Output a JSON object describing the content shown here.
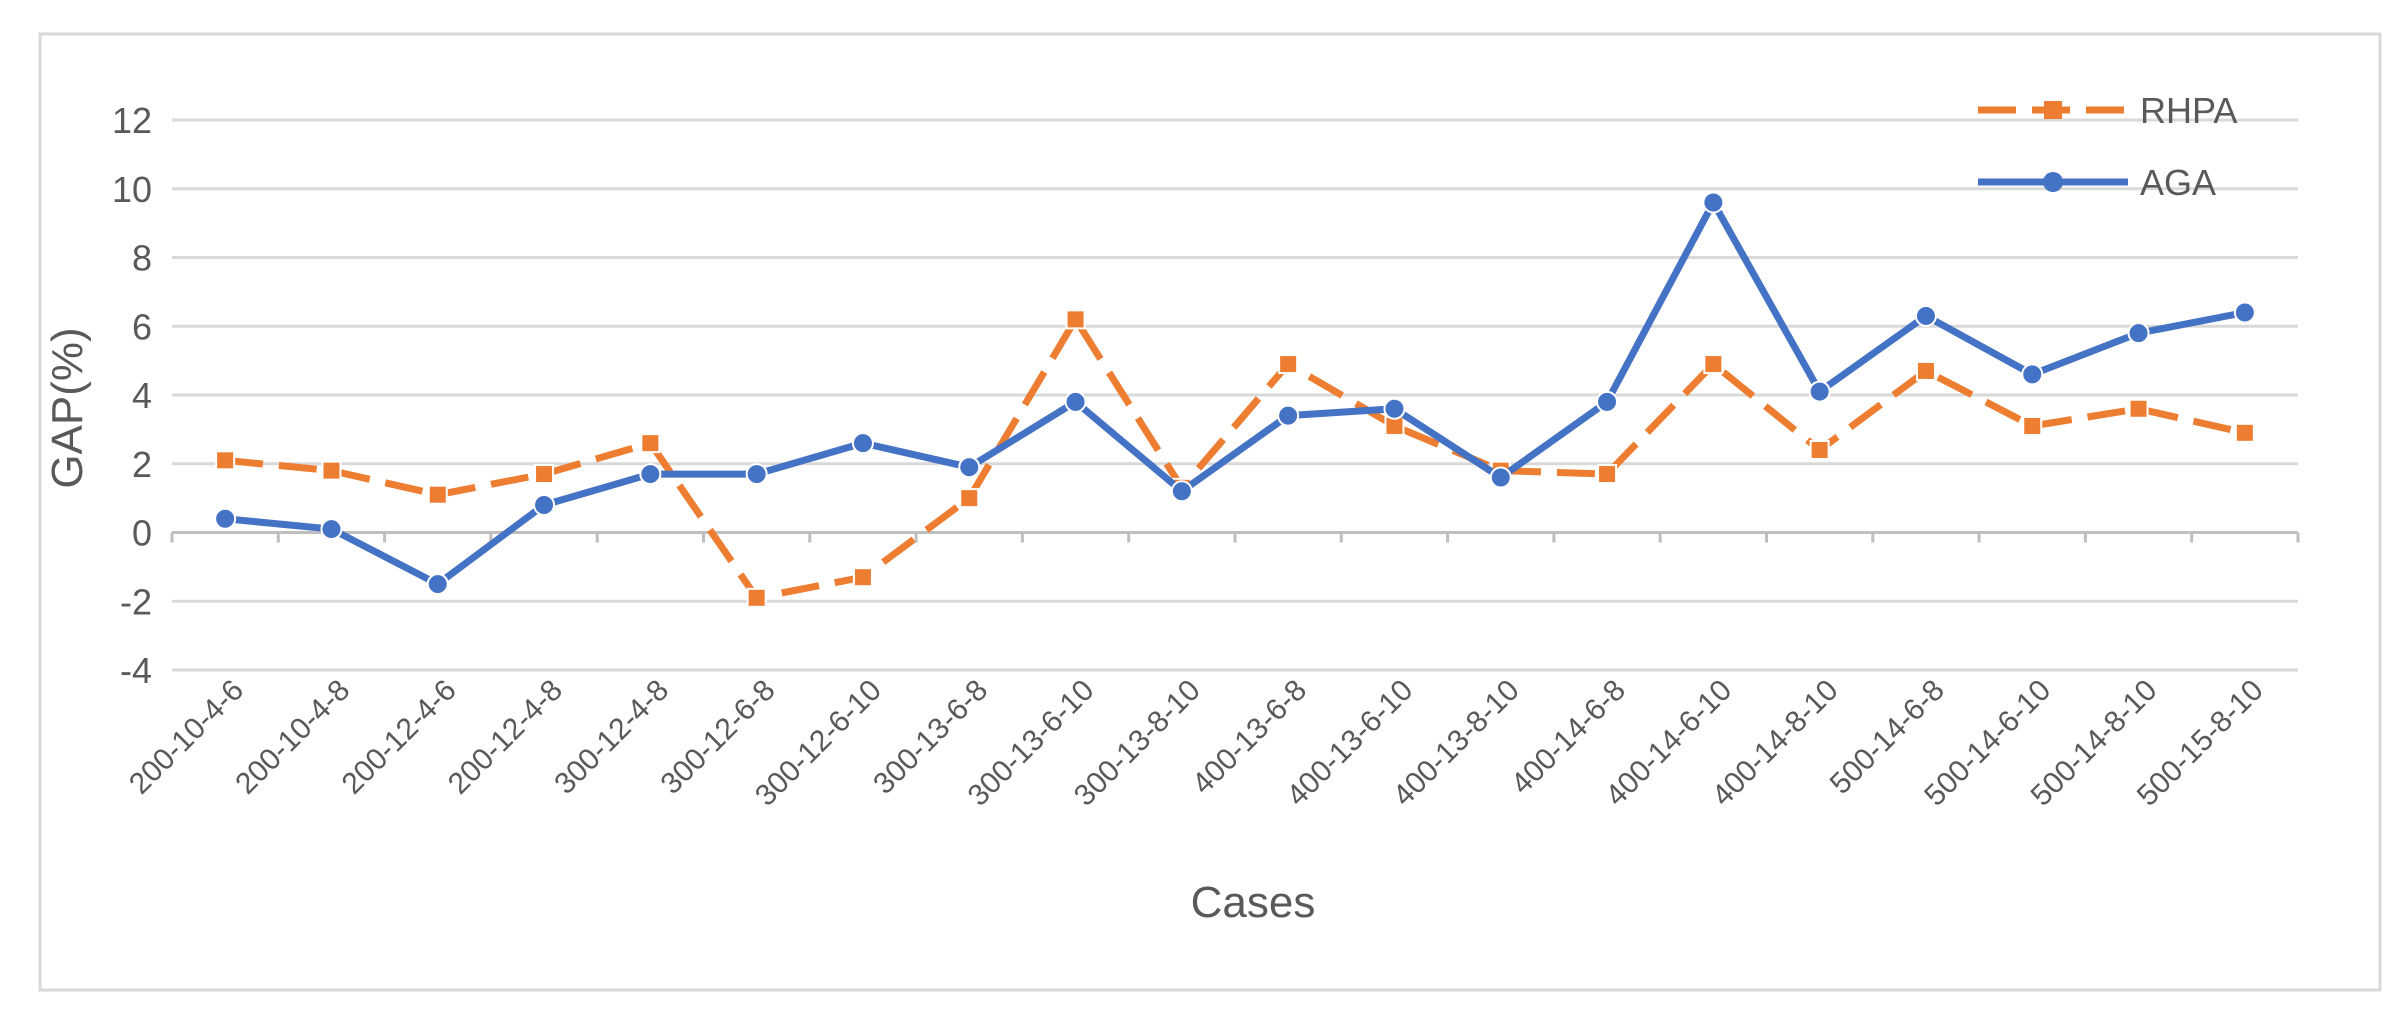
{
  "chart_data": {
    "type": "line",
    "title": "",
    "xlabel": "Cases",
    "ylabel": "GAP(%)",
    "ylim": [
      -4,
      12
    ],
    "yticks": [
      -4,
      -2,
      0,
      2,
      4,
      6,
      8,
      10,
      12
    ],
    "ytick_labels": [
      "-4",
      "-2",
      "0",
      "2",
      "4",
      "6",
      "8",
      "10",
      "12"
    ],
    "grid": true,
    "legend_position": "top-right",
    "categories": [
      "200-10-4-6",
      "200-10-4-8",
      "200-12-4-6",
      "200-12-4-8",
      "300-12-4-8",
      "300-12-6-8",
      "300-12-6-10",
      "300-13-6-8",
      "300-13-6-10",
      "300-13-8-10",
      "400-13-6-8",
      "400-13-6-10",
      "400-13-8-10",
      "400-14-6-8",
      "400-14-6-10",
      "400-14-8-10",
      "500-14-6-8",
      "500-14-6-10",
      "500-14-8-10",
      "500-15-8-10"
    ],
    "series": [
      {
        "name": "RHPA",
        "color": "#ED7D31",
        "marker": "square",
        "line_style": "dashed",
        "values": [
          2.1,
          1.8,
          1.1,
          1.7,
          2.6,
          -1.9,
          -1.3,
          1.0,
          6.2,
          1.3,
          4.9,
          3.1,
          1.8,
          1.7,
          4.9,
          2.4,
          4.7,
          3.1,
          3.6,
          2.9
        ]
      },
      {
        "name": "AGA",
        "color": "#4472C4",
        "marker": "circle",
        "line_style": "solid",
        "values": [
          0.4,
          0.1,
          -1.5,
          0.8,
          1.7,
          1.7,
          2.6,
          1.9,
          3.8,
          1.2,
          3.4,
          3.6,
          1.6,
          3.8,
          9.6,
          4.1,
          6.3,
          4.6,
          5.8,
          6.4
        ]
      }
    ]
  }
}
